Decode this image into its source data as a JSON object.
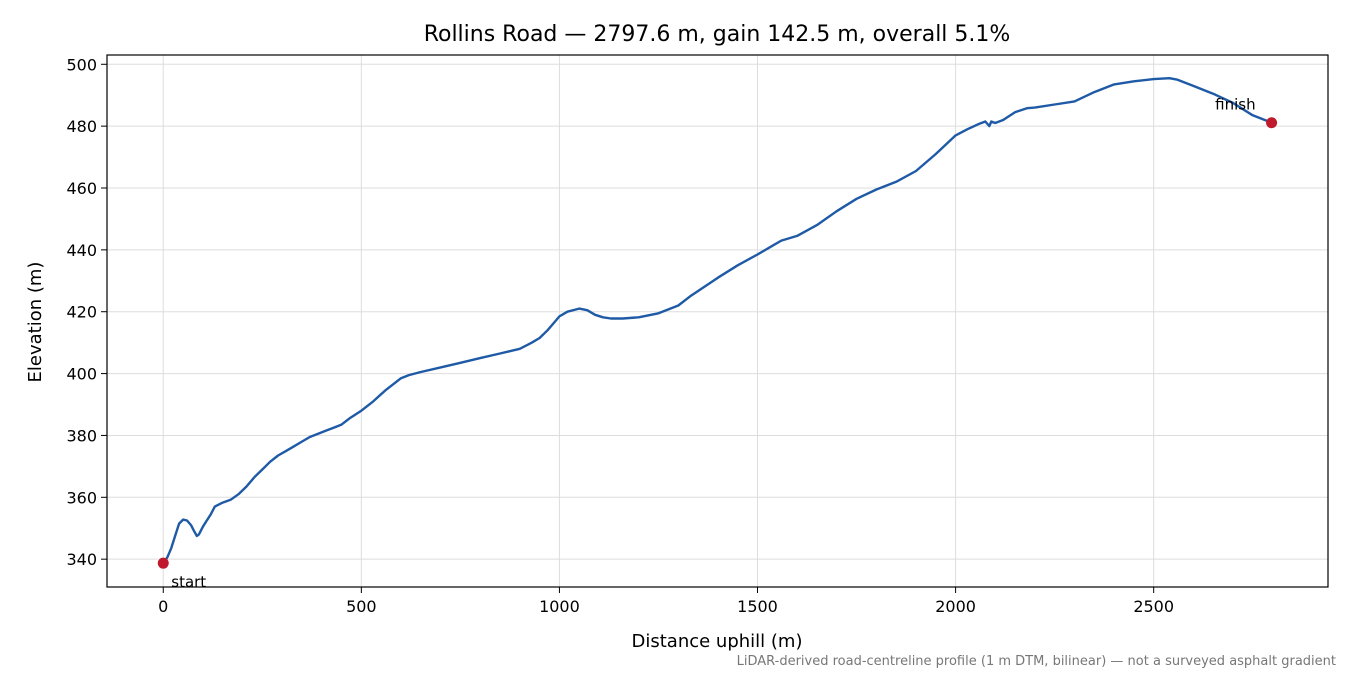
{
  "chart_data": {
    "type": "line",
    "title": "Rollins Road — 2797.6 m, gain 142.5 m, overall 5.1%",
    "xlabel": "Distance uphill (m)",
    "ylabel": "Elevation (m)",
    "xlim": [
      -142,
      2940
    ],
    "ylim": [
      331,
      503
    ],
    "xticks": [
      0,
      500,
      1000,
      1500,
      2000,
      2500
    ],
    "yticks": [
      340,
      360,
      380,
      400,
      420,
      440,
      460,
      480,
      500
    ],
    "grid": true,
    "footnote": "LiDAR-derived road-centreline profile (1 m DTM, bilinear) — not a surveyed asphalt gradient",
    "series": [
      {
        "color": "#1f5aa6",
        "x": [
          0,
          10,
          20,
          30,
          40,
          50,
          60,
          70,
          78,
          85,
          90,
          100,
          110,
          120,
          130,
          150,
          170,
          190,
          210,
          230,
          250,
          270,
          290,
          310,
          330,
          350,
          370,
          390,
          410,
          430,
          450,
          470,
          500,
          530,
          560,
          580,
          600,
          620,
          650,
          700,
          750,
          800,
          850,
          900,
          930,
          950,
          970,
          990,
          1000,
          1020,
          1050,
          1070,
          1090,
          1110,
          1130,
          1160,
          1200,
          1250,
          1300,
          1330,
          1400,
          1450,
          1500,
          1540,
          1560,
          1600,
          1650,
          1700,
          1750,
          1800,
          1850,
          1900,
          1950,
          2000,
          2030,
          2060,
          2075,
          2085,
          2090,
          2100,
          2120,
          2150,
          2180,
          2200,
          2250,
          2300,
          2350,
          2400,
          2450,
          2500,
          2540,
          2560,
          2600,
          2650,
          2700,
          2750,
          2797.6
        ],
        "y": [
          338.7,
          340.5,
          343.5,
          347.5,
          351.5,
          352.8,
          352.5,
          351.0,
          349.0,
          347.5,
          348.0,
          350.5,
          352.5,
          354.5,
          357.0,
          358.3,
          359.2,
          361.0,
          363.5,
          366.5,
          369.0,
          371.5,
          373.5,
          375.0,
          376.5,
          378.0,
          379.5,
          380.5,
          381.5,
          382.5,
          383.5,
          385.5,
          388.0,
          391.0,
          394.5,
          396.5,
          398.5,
          399.5,
          400.5,
          402.0,
          403.5,
          405.0,
          406.5,
          408.0,
          410.0,
          411.5,
          414.0,
          417.0,
          418.5,
          420.0,
          421.0,
          420.5,
          419.0,
          418.2,
          417.8,
          417.8,
          418.2,
          419.5,
          422.0,
          425.0,
          431.0,
          435.0,
          438.5,
          441.5,
          443.0,
          444.5,
          448.0,
          452.5,
          456.5,
          459.5,
          462.0,
          465.5,
          471.0,
          477.0,
          479.0,
          480.8,
          481.5,
          480.0,
          481.5,
          481.0,
          482.0,
          484.5,
          485.8,
          486.0,
          487.0,
          488.0,
          491.0,
          493.5,
          494.5,
          495.2,
          495.5,
          495.0,
          493.0,
          490.5,
          487.5,
          483.5,
          481.1
        ]
      }
    ],
    "markers": [
      {
        "x": 0,
        "y": 338.7,
        "label": "start",
        "color": "#c0192b"
      },
      {
        "x": 2797.6,
        "y": 481.1,
        "label": "finish",
        "color": "#c0192b"
      }
    ]
  }
}
